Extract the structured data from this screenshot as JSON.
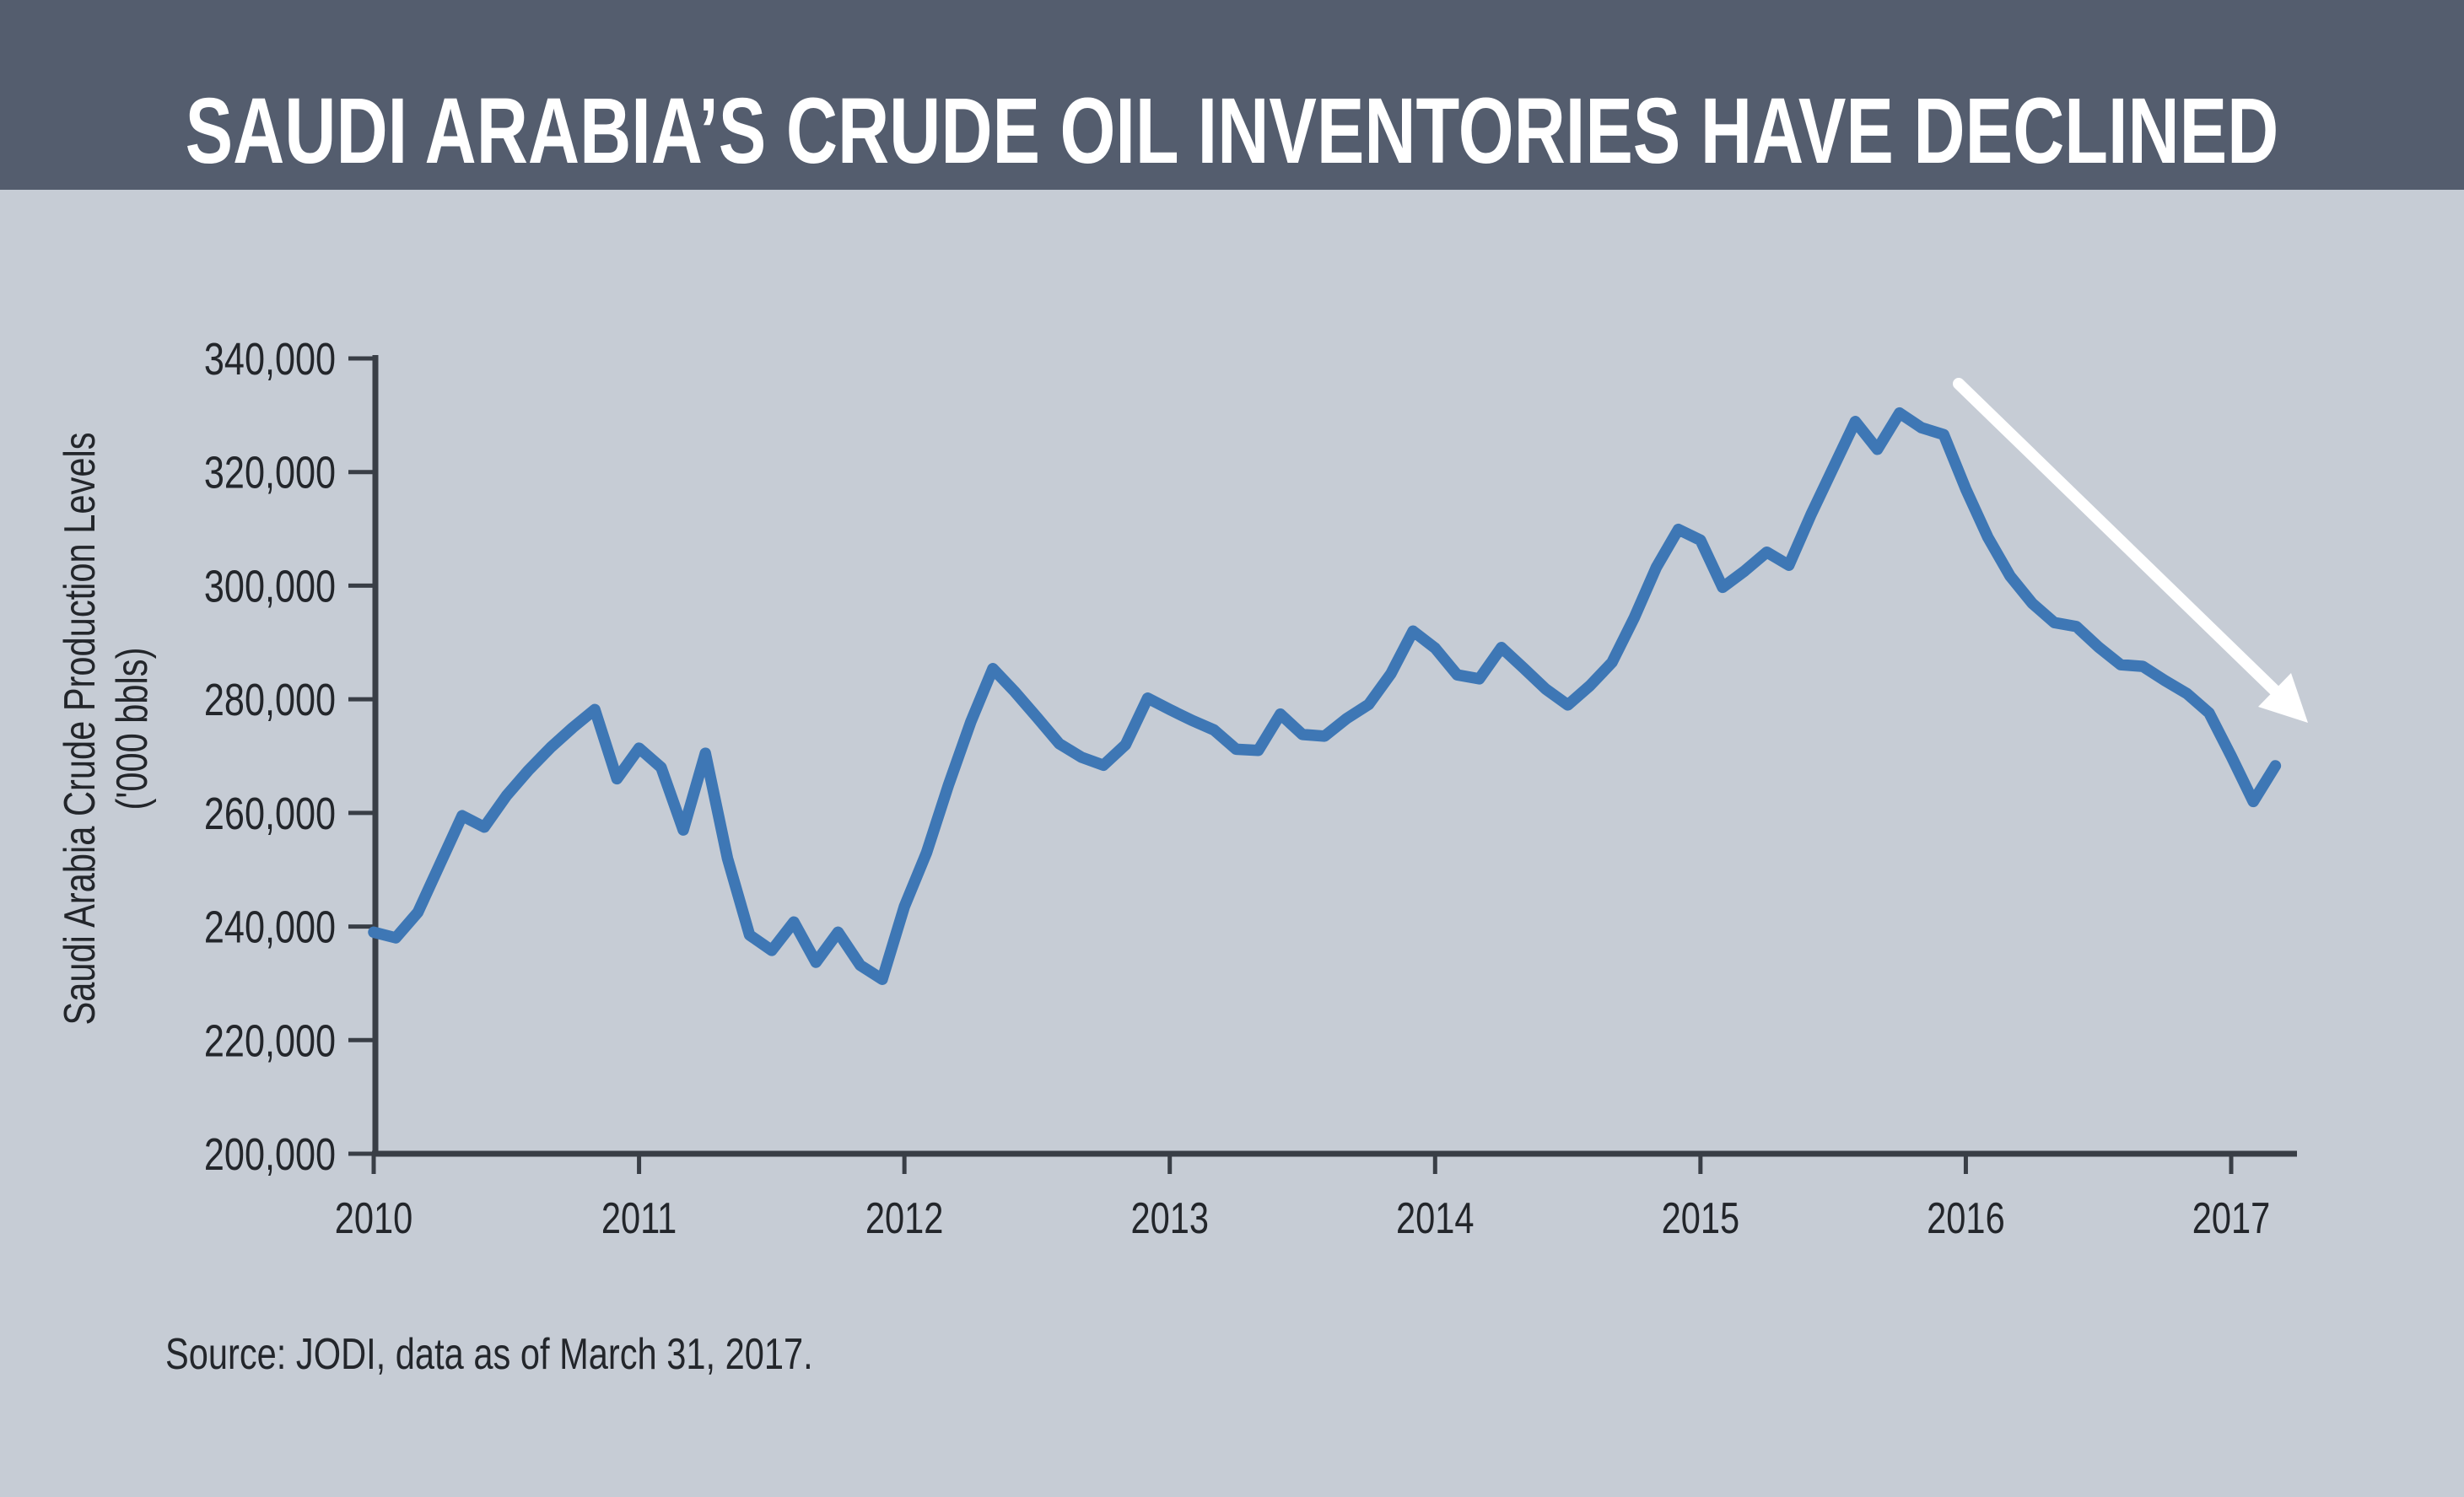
{
  "header": {
    "title": "SAUDI ARABIA’S CRUDE OIL INVENTORIES HAVE DECLINED",
    "bg_color": "#545D6E",
    "text_color": "#FFFFFF"
  },
  "source": {
    "text": "Source: JODI, data as of March 31, 2017."
  },
  "colors": {
    "page_background": "#C6CCD5",
    "line": "#3E77B5",
    "axis": "#393E46",
    "text": "#23262B",
    "arrow": "#FFFFFF"
  },
  "chart_data": {
    "type": "line",
    "title": "SAUDI ARABIA’S CRUDE OIL INVENTORIES HAVE DECLINED",
    "xlabel": "",
    "ylabel_line1": "Saudi Arabia Crude Production Levels",
    "ylabel_line2": "('000 bbls)",
    "x_tick_labels": [
      "2010",
      "2011",
      "2012",
      "2013",
      "2014",
      "2015",
      "2016",
      "2017"
    ],
    "y_tick_labels": [
      "200,000",
      "220,000",
      "240,000",
      "260,000",
      "280,000",
      "300,000",
      "320,000",
      "340,000"
    ],
    "ylim": [
      200000,
      340000
    ],
    "y_tick_step": 20000,
    "grid": "off",
    "legend": "none",
    "x_frequency": "monthly",
    "x_start_label": "2010",
    "x_end_label": "2017 (March)",
    "annotation": {
      "type": "arrow",
      "color": "#FFFFFF",
      "meaning": "inventories declining since late 2015 peak"
    },
    "series": [
      {
        "name": "Saudi Arabia crude inventories ('000 bbls)",
        "values": [
          239000,
          238000,
          242500,
          251000,
          259500,
          257500,
          263000,
          267500,
          271500,
          275000,
          278200,
          266000,
          271400,
          268000,
          257000,
          270500,
          252000,
          238500,
          235800,
          240800,
          233700,
          239000,
          233200,
          230700,
          243500,
          253000,
          265000,
          276000,
          285400,
          281300,
          276800,
          272200,
          269800,
          268400,
          272000,
          280200,
          278200,
          276300,
          274600,
          271200,
          271000,
          277400,
          273800,
          273500,
          276600,
          279100,
          284500,
          292000,
          289000,
          284300,
          283600,
          289100,
          285500,
          281800,
          279000,
          282400,
          286500,
          294300,
          303200,
          309900,
          308000,
          299700,
          302600,
          305900,
          303600,
          312500,
          320700,
          328900,
          324000,
          330400,
          327800,
          326600,
          317000,
          308500,
          301700,
          296900,
          293500,
          292800,
          289200,
          286100,
          285800,
          283300,
          281000,
          277600,
          270000,
          262000,
          268300
        ]
      }
    ]
  }
}
